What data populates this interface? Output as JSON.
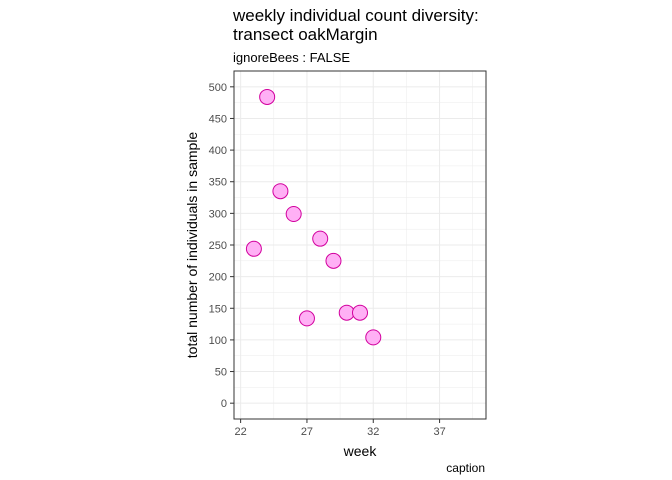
{
  "chart_data": {
    "type": "scatter",
    "title_lines": [
      "weekly individual count diversity:",
      "transect oakMargin"
    ],
    "subtitle": "ignoreBees : FALSE",
    "xlabel": "week",
    "ylabel": "total number of individuals in sample",
    "caption": "caption",
    "xlim": [
      21.5,
      40.5
    ],
    "ylim": [
      -25,
      525
    ],
    "x_ticks": [
      22,
      27,
      32,
      37
    ],
    "y_ticks": [
      0,
      50,
      100,
      150,
      200,
      250,
      300,
      350,
      400,
      450,
      500
    ],
    "grid": true,
    "points": [
      {
        "x": 23,
        "y": 244
      },
      {
        "x": 24,
        "y": 484
      },
      {
        "x": 25,
        "y": 335
      },
      {
        "x": 26,
        "y": 299
      },
      {
        "x": 27,
        "y": 134
      },
      {
        "x": 28,
        "y": 260
      },
      {
        "x": 29,
        "y": 225
      },
      {
        "x": 30,
        "y": 143
      },
      {
        "x": 31,
        "y": 143
      },
      {
        "x": 32,
        "y": 104
      }
    ],
    "point_fill": "#ffb0f5",
    "point_stroke": "#d2009e",
    "grid_color": "#ebebeb",
    "panel_border": "#333333"
  }
}
